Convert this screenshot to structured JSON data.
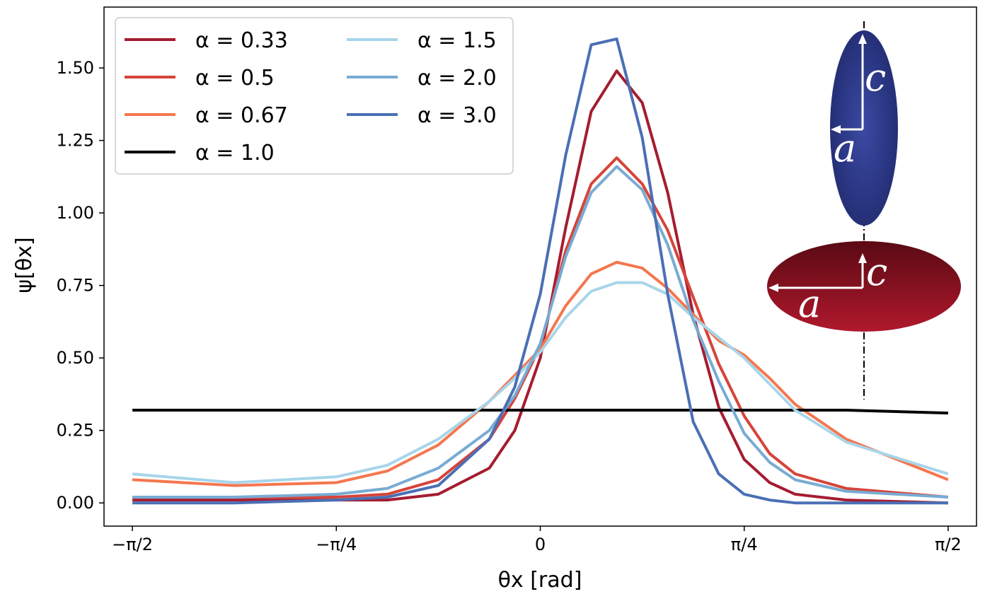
{
  "chart_data": {
    "type": "line",
    "xlabel": "θx [rad]",
    "ylabel": "ψ[θx]",
    "xlim": [
      -1.68,
      1.68
    ],
    "ylim": [
      -0.08,
      1.71
    ],
    "x_ticks": [
      {
        "value": -1.5708,
        "label": "−π/2"
      },
      {
        "value": -0.7854,
        "label": "−π/4"
      },
      {
        "value": 0,
        "label": "0"
      },
      {
        "value": 0.7854,
        "label": "π/4"
      },
      {
        "value": 1.5708,
        "label": "π/2"
      }
    ],
    "y_ticks": [
      {
        "value": 0.0,
        "label": "0.00"
      },
      {
        "value": 0.25,
        "label": "0.25"
      },
      {
        "value": 0.5,
        "label": "0.50"
      },
      {
        "value": 0.75,
        "label": "0.75"
      },
      {
        "value": 1.0,
        "label": "1.00"
      },
      {
        "value": 1.25,
        "label": "1.25"
      },
      {
        "value": 1.5,
        "label": "1.50"
      }
    ],
    "grid": false,
    "legend_placement": "top-left",
    "x": [
      -1.5708,
      -1.1781,
      -0.7854,
      -0.589,
      -0.3927,
      -0.1963,
      -0.0982,
      0,
      0.0982,
      0.1963,
      0.2945,
      0.3927,
      0.4909,
      0.589,
      0.6872,
      0.7854,
      0.8836,
      0.9817,
      1.1781,
      1.5708
    ],
    "series": [
      {
        "name": "α = 0.33",
        "color": "#a51c30",
        "values": [
          0.01,
          0.01,
          0.01,
          0.01,
          0.03,
          0.12,
          0.25,
          0.5,
          0.95,
          1.35,
          1.49,
          1.38,
          1.07,
          0.65,
          0.33,
          0.15,
          0.07,
          0.03,
          0.01,
          0.0
        ]
      },
      {
        "name": "α = 0.5",
        "color": "#d6443a",
        "values": [
          0.02,
          0.02,
          0.02,
          0.03,
          0.08,
          0.22,
          0.36,
          0.54,
          0.87,
          1.1,
          1.19,
          1.1,
          0.94,
          0.71,
          0.48,
          0.3,
          0.17,
          0.1,
          0.05,
          0.02
        ]
      },
      {
        "name": "α = 0.67",
        "color": "#f4774f",
        "values": [
          0.08,
          0.06,
          0.07,
          0.11,
          0.2,
          0.35,
          0.44,
          0.53,
          0.68,
          0.79,
          0.83,
          0.81,
          0.74,
          0.65,
          0.56,
          0.51,
          0.43,
          0.34,
          0.22,
          0.08
        ]
      },
      {
        "name": "α = 1.0",
        "color": "#000000",
        "values": [
          0.32,
          0.32,
          0.32,
          0.32,
          0.32,
          0.32,
          0.32,
          0.32,
          0.32,
          0.32,
          0.32,
          0.32,
          0.32,
          0.32,
          0.32,
          0.32,
          0.32,
          0.32,
          0.32,
          0.31
        ]
      },
      {
        "name": "α = 1.5",
        "color": "#a8d5ea",
        "values": [
          0.1,
          0.07,
          0.09,
          0.13,
          0.22,
          0.35,
          0.43,
          0.52,
          0.64,
          0.73,
          0.76,
          0.76,
          0.72,
          0.64,
          0.57,
          0.5,
          0.41,
          0.32,
          0.21,
          0.1
        ]
      },
      {
        "name": "α = 2.0",
        "color": "#78abd3",
        "values": [
          0.02,
          0.02,
          0.03,
          0.05,
          0.12,
          0.25,
          0.37,
          0.55,
          0.85,
          1.07,
          1.16,
          1.08,
          0.89,
          0.63,
          0.42,
          0.24,
          0.14,
          0.08,
          0.04,
          0.02
        ]
      },
      {
        "name": "α = 3.0",
        "color": "#4a6fb5",
        "values": [
          0.0,
          0.0,
          0.01,
          0.02,
          0.06,
          0.22,
          0.4,
          0.72,
          1.2,
          1.58,
          1.6,
          1.26,
          0.72,
          0.28,
          0.1,
          0.03,
          0.01,
          0.0,
          0.0,
          0.0
        ]
      }
    ],
    "inset": {
      "prolate": {
        "color": "#2e3a8a",
        "label_c": "c",
        "label_a": "a"
      },
      "oblate": {
        "color": "#8a1020",
        "label_c": "c",
        "label_a": "a"
      }
    }
  }
}
